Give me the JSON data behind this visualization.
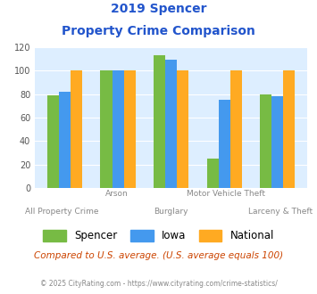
{
  "title_line1": "2019 Spencer",
  "title_line2": "Property Crime Comparison",
  "categories": [
    "All Property Crime",
    "Arson",
    "Burglary",
    "Motor Vehicle Theft",
    "Larceny & Theft"
  ],
  "spencer": [
    79,
    100,
    113,
    25,
    80
  ],
  "iowa": [
    82,
    100,
    109,
    75,
    78
  ],
  "national": [
    100,
    100,
    100,
    100,
    100
  ],
  "spencer_color": "#77bb44",
  "iowa_color": "#4499ee",
  "national_color": "#ffaa22",
  "ylim": [
    0,
    120
  ],
  "yticks": [
    0,
    20,
    40,
    60,
    80,
    100,
    120
  ],
  "bg_color": "#ddeeff",
  "legend_labels": [
    "Spencer",
    "Iowa",
    "National"
  ],
  "footer_text": "Compared to U.S. average. (U.S. average equals 100)",
  "credit_text": "© 2025 CityRating.com - https://www.cityrating.com/crime-statistics/",
  "title_color": "#2255cc",
  "footer_color": "#cc4400",
  "credit_color": "#888888",
  "xlabel_color": "#888888",
  "bar_width": 0.22
}
